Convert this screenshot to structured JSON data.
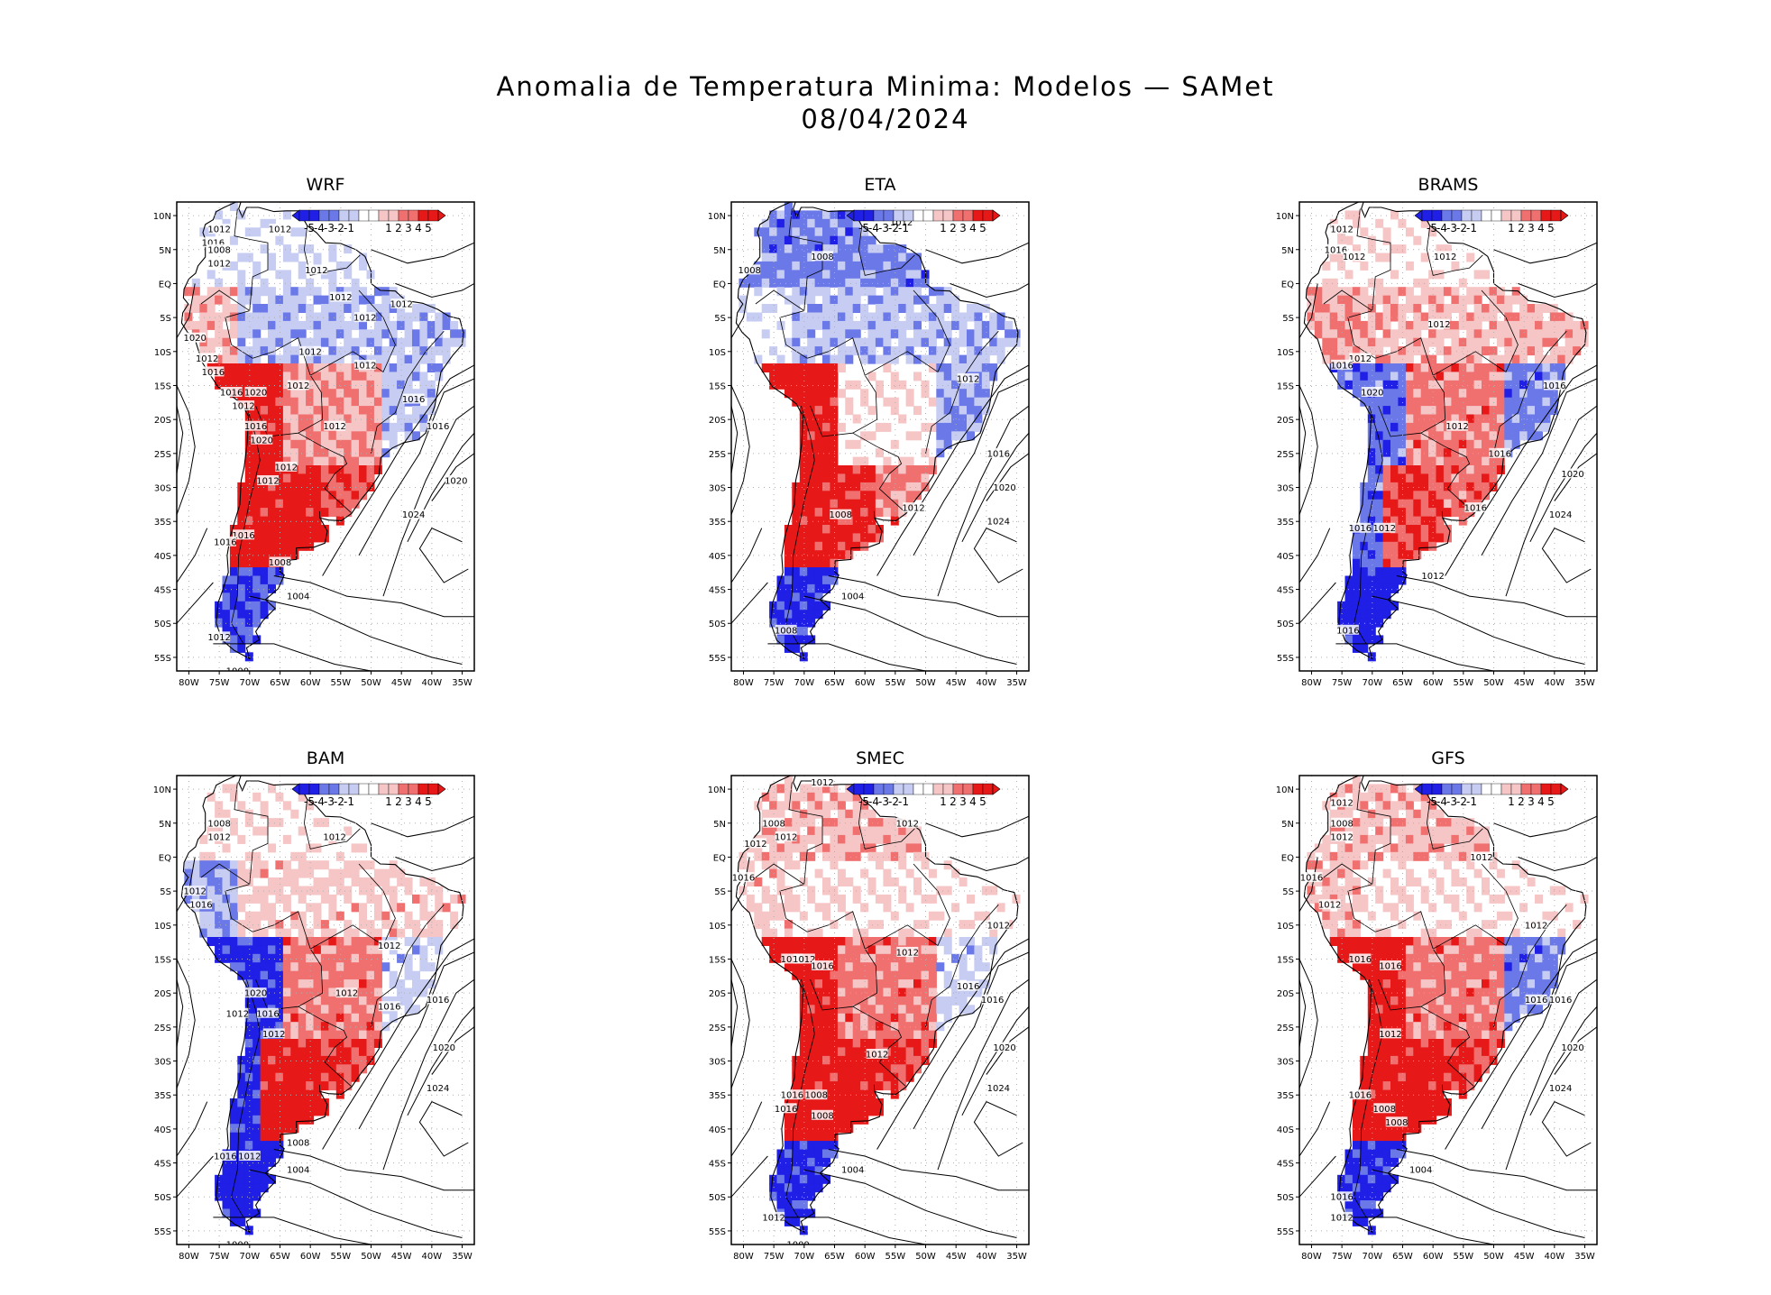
{
  "figure": {
    "title": "Anomalia de Temperatura Minima: Modelos — SAMet",
    "date": "08/04/2024"
  },
  "colors": {
    "strong_neg": "#1f1fe6",
    "mid_neg": "#6b78e8",
    "weak_neg": "#c6ccf2",
    "neutral": "#ffffff",
    "weak_pos": "#f6c6c6",
    "mid_pos": "#f07070",
    "strong_pos": "#e61818",
    "contour": "#000000",
    "grid": "#b0b0b0"
  },
  "colorbar": {
    "labels": [
      "-5",
      "-4",
      "-3",
      "-2",
      "-1",
      "1",
      "2",
      "3",
      "4",
      "5"
    ]
  },
  "axes": {
    "lon_labels": [
      "80W",
      "75W",
      "70W",
      "65W",
      "60W",
      "55W",
      "50W",
      "45W",
      "40W",
      "35W"
    ],
    "lat_labels": [
      "10N",
      "5N",
      "EQ",
      "5S",
      "10S",
      "15S",
      "20S",
      "25S",
      "30S",
      "35S",
      "40S",
      "45S",
      "50S",
      "55S"
    ],
    "lon_range": [
      -82,
      -33
    ],
    "lat_range": [
      -57,
      12
    ]
  },
  "panels": [
    {
      "name": "WRF",
      "anomaly": {
        "north": -0.5,
        "amazon": -1.5,
        "central": 2.0,
        "southeast": -1.5,
        "andes_north": 1.5,
        "andes_central": 4.5,
        "pampas": 4.5,
        "patagonia": -3.5
      },
      "isobars": [
        {
          "label": "1012",
          "lon": -75,
          "lat": 8
        },
        {
          "label": "1012",
          "lon": -65,
          "lat": 8
        },
        {
          "label": "1016",
          "lon": -76,
          "lat": 6
        },
        {
          "label": "1008",
          "lon": -75,
          "lat": 5
        },
        {
          "label": "1012",
          "lon": -75,
          "lat": 3
        },
        {
          "label": "1012",
          "lon": -59,
          "lat": 2
        },
        {
          "label": "1012",
          "lon": -55,
          "lat": -2
        },
        {
          "label": "1012",
          "lon": -45,
          "lat": -3
        },
        {
          "label": "1012",
          "lon": -51,
          "lat": -5
        },
        {
          "label": "1020",
          "lon": -79,
          "lat": -8
        },
        {
          "label": "1012",
          "lon": -60,
          "lat": -10
        },
        {
          "label": "1012",
          "lon": -77,
          "lat": -11
        },
        {
          "label": "1016",
          "lon": -76,
          "lat": -13
        },
        {
          "label": "1012",
          "lon": -51,
          "lat": -12
        },
        {
          "label": "1016",
          "lon": -73,
          "lat": -16
        },
        {
          "label": "1020",
          "lon": -69,
          "lat": -16
        },
        {
          "label": "1012",
          "lon": -71,
          "lat": -18
        },
        {
          "label": "1012",
          "lon": -62,
          "lat": -15
        },
        {
          "label": "1016",
          "lon": -43,
          "lat": -17
        },
        {
          "label": "1016",
          "lon": -39,
          "lat": -21
        },
        {
          "label": "1012",
          "lon": -56,
          "lat": -21
        },
        {
          "label": "1016",
          "lon": -69,
          "lat": -21
        },
        {
          "label": "1020",
          "lon": -68,
          "lat": -23
        },
        {
          "label": "1012",
          "lon": -64,
          "lat": -27
        },
        {
          "label": "1012",
          "lon": -67,
          "lat": -29
        },
        {
          "label": "1020",
          "lon": -36,
          "lat": -29
        },
        {
          "label": "1024",
          "lon": -43,
          "lat": -34
        },
        {
          "label": "1016",
          "lon": -71,
          "lat": -37
        },
        {
          "label": "1016",
          "lon": -74,
          "lat": -38
        },
        {
          "label": "1008",
          "lon": -65,
          "lat": -41
        },
        {
          "label": "1004",
          "lon": -62,
          "lat": -46
        },
        {
          "label": "1012",
          "lon": -75,
          "lat": -52
        },
        {
          "label": "1000",
          "lon": -72,
          "lat": -57
        }
      ]
    },
    {
      "name": "ETA",
      "anomaly": {
        "north": -2.5,
        "amazon": -1.5,
        "central": 0.5,
        "southeast": -2.0,
        "andes_north": -0.5,
        "andes_central": 4.5,
        "pampas": 4.0,
        "patagonia": -4.0
      },
      "isobars": [
        {
          "label": "1012",
          "lon": -54,
          "lat": 9
        },
        {
          "label": "1008",
          "lon": -79,
          "lat": 2
        },
        {
          "label": "1008",
          "lon": -67,
          "lat": 4
        },
        {
          "label": "1012",
          "lon": -43,
          "lat": -14
        },
        {
          "label": "1016",
          "lon": -38,
          "lat": -25
        },
        {
          "label": "1020",
          "lon": -37,
          "lat": -30
        },
        {
          "label": "1024",
          "lon": -38,
          "lat": -35
        },
        {
          "label": "1008",
          "lon": -64,
          "lat": -34
        },
        {
          "label": "1012",
          "lon": -52,
          "lat": -33
        },
        {
          "label": "1004",
          "lon": -62,
          "lat": -46
        },
        {
          "label": "1008",
          "lon": -73,
          "lat": -51
        }
      ]
    },
    {
      "name": "BRAMS",
      "anomaly": {
        "north": 0.5,
        "amazon": 1.5,
        "central": 2.5,
        "southeast": -2.5,
        "andes_north": 2.0,
        "andes_central": -3.0,
        "pampas": 3.5,
        "patagonia": -4.5
      },
      "isobars": [
        {
          "label": "1012",
          "lon": -75,
          "lat": 8
        },
        {
          "label": "1016",
          "lon": -76,
          "lat": 5
        },
        {
          "label": "1012",
          "lon": -73,
          "lat": 4
        },
        {
          "label": "1012",
          "lon": -58,
          "lat": 4
        },
        {
          "label": "1012",
          "lon": -59,
          "lat": -6
        },
        {
          "label": "1012",
          "lon": -72,
          "lat": -11
        },
        {
          "label": "1016",
          "lon": -75,
          "lat": -12
        },
        {
          "label": "1016",
          "lon": -40,
          "lat": -15
        },
        {
          "label": "1020",
          "lon": -70,
          "lat": -16
        },
        {
          "label": "1012",
          "lon": -56,
          "lat": -21
        },
        {
          "label": "1016",
          "lon": -49,
          "lat": -25
        },
        {
          "label": "1020",
          "lon": -37,
          "lat": -28
        },
        {
          "label": "1016",
          "lon": -53,
          "lat": -33
        },
        {
          "label": "1024",
          "lon": -39,
          "lat": -34
        },
        {
          "label": "1016",
          "lon": -72,
          "lat": -36
        },
        {
          "label": "1012",
          "lon": -68,
          "lat": -36
        },
        {
          "label": "1012",
          "lon": -60,
          "lat": -43
        },
        {
          "label": "1016",
          "lon": -74,
          "lat": -51
        }
      ]
    },
    {
      "name": "BAM",
      "anomaly": {
        "north": 0.5,
        "amazon": 1.0,
        "central": 2.5,
        "southeast": -1.0,
        "andes_north": -2.0,
        "andes_central": -4.0,
        "pampas": 4.5,
        "patagonia": -4.5
      },
      "isobars": [
        {
          "label": "1008",
          "lon": -75,
          "lat": 5
        },
        {
          "label": "1012",
          "lon": -75,
          "lat": 3
        },
        {
          "label": "1012",
          "lon": -56,
          "lat": 3
        },
        {
          "label": "1012",
          "lon": -79,
          "lat": -5
        },
        {
          "label": "1016",
          "lon": -78,
          "lat": -7
        },
        {
          "label": "1012",
          "lon": -47,
          "lat": -13
        },
        {
          "label": "1020",
          "lon": -69,
          "lat": -20
        },
        {
          "label": "1012",
          "lon": -54,
          "lat": -20
        },
        {
          "label": "1016",
          "lon": -47,
          "lat": -22
        },
        {
          "label": "1016",
          "lon": -39,
          "lat": -21
        },
        {
          "label": "1012",
          "lon": -72,
          "lat": -23
        },
        {
          "label": "1016",
          "lon": -67,
          "lat": -23
        },
        {
          "label": "1012",
          "lon": -66,
          "lat": -26
        },
        {
          "label": "1020",
          "lon": -38,
          "lat": -28
        },
        {
          "label": "1024",
          "lon": -39,
          "lat": -34
        },
        {
          "label": "1008",
          "lon": -62,
          "lat": -42
        },
        {
          "label": "1016",
          "lon": -74,
          "lat": -44
        },
        {
          "label": "1012",
          "lon": -70,
          "lat": -44
        },
        {
          "label": "1004",
          "lon": -62,
          "lat": -46
        },
        {
          "label": "1000",
          "lon": -72,
          "lat": -57
        }
      ]
    },
    {
      "name": "SMEC",
      "anomaly": {
        "north": 1.5,
        "amazon": 0.5,
        "central": 2.5,
        "southeast": -1.0,
        "andes_north": 1.0,
        "andes_central": 4.5,
        "pampas": 4.5,
        "patagonia": -4.0
      },
      "isobars": [
        {
          "label": "1012",
          "lon": -67,
          "lat": 11
        },
        {
          "label": "1008",
          "lon": -75,
          "lat": 5
        },
        {
          "label": "1012",
          "lon": -73,
          "lat": 3
        },
        {
          "label": "1012",
          "lon": -78,
          "lat": 2
        },
        {
          "label": "1012",
          "lon": -53,
          "lat": 5
        },
        {
          "label": "1016",
          "lon": -80,
          "lat": -3
        },
        {
          "label": "1012",
          "lon": -38,
          "lat": -10
        },
        {
          "label": "1012",
          "lon": -53,
          "lat": -14
        },
        {
          "label": "1016",
          "lon": -72,
          "lat": -15
        },
        {
          "label": "1012",
          "lon": -70,
          "lat": -15
        },
        {
          "label": "1016",
          "lon": -67,
          "lat": -16
        },
        {
          "label": "1016",
          "lon": -43,
          "lat": -19
        },
        {
          "label": "1016",
          "lon": -39,
          "lat": -21
        },
        {
          "label": "1012",
          "lon": -58,
          "lat": -29
        },
        {
          "label": "1020",
          "lon": -37,
          "lat": -28
        },
        {
          "label": "1024",
          "lon": -38,
          "lat": -34
        },
        {
          "label": "1016",
          "lon": -72,
          "lat": -35
        },
        {
          "label": "1008",
          "lon": -68,
          "lat": -35
        },
        {
          "label": "1016",
          "lon": -73,
          "lat": -37
        },
        {
          "label": "1008",
          "lon": -67,
          "lat": -38
        },
        {
          "label": "1004",
          "lon": -62,
          "lat": -46
        },
        {
          "label": "1012",
          "lon": -75,
          "lat": -53
        },
        {
          "label": "1000",
          "lon": -71,
          "lat": -57
        }
      ]
    },
    {
      "name": "GFS",
      "anomaly": {
        "north": 1.5,
        "amazon": 0.5,
        "central": 2.5,
        "southeast": -2.5,
        "andes_north": 1.5,
        "andes_central": 4.5,
        "pampas": 4.5,
        "patagonia": -4.0
      },
      "isobars": [
        {
          "label": "1012",
          "lon": -75,
          "lat": 8
        },
        {
          "label": "1008",
          "lon": -75,
          "lat": 5
        },
        {
          "label": "1012",
          "lon": -75,
          "lat": 3
        },
        {
          "label": "1012",
          "lon": -52,
          "lat": 0
        },
        {
          "label": "1016",
          "lon": -80,
          "lat": -3
        },
        {
          "label": "1012",
          "lon": -77,
          "lat": -7
        },
        {
          "label": "1012",
          "lon": -43,
          "lat": -10
        },
        {
          "label": "1016",
          "lon": -72,
          "lat": -15
        },
        {
          "label": "1016",
          "lon": -67,
          "lat": -16
        },
        {
          "label": "1016",
          "lon": -43,
          "lat": -21
        },
        {
          "label": "1016",
          "lon": -39,
          "lat": -21
        },
        {
          "label": "1012",
          "lon": -67,
          "lat": -26
        },
        {
          "label": "1020",
          "lon": -37,
          "lat": -28
        },
        {
          "label": "1024",
          "lon": -39,
          "lat": -34
        },
        {
          "label": "1016",
          "lon": -72,
          "lat": -35
        },
        {
          "label": "1008",
          "lon": -68,
          "lat": -37
        },
        {
          "label": "1008",
          "lon": -66,
          "lat": -39
        },
        {
          "label": "1004",
          "lon": -62,
          "lat": -46
        },
        {
          "label": "1016",
          "lon": -75,
          "lat": -50
        },
        {
          "label": "1012",
          "lon": -75,
          "lat": -53
        }
      ]
    }
  ]
}
